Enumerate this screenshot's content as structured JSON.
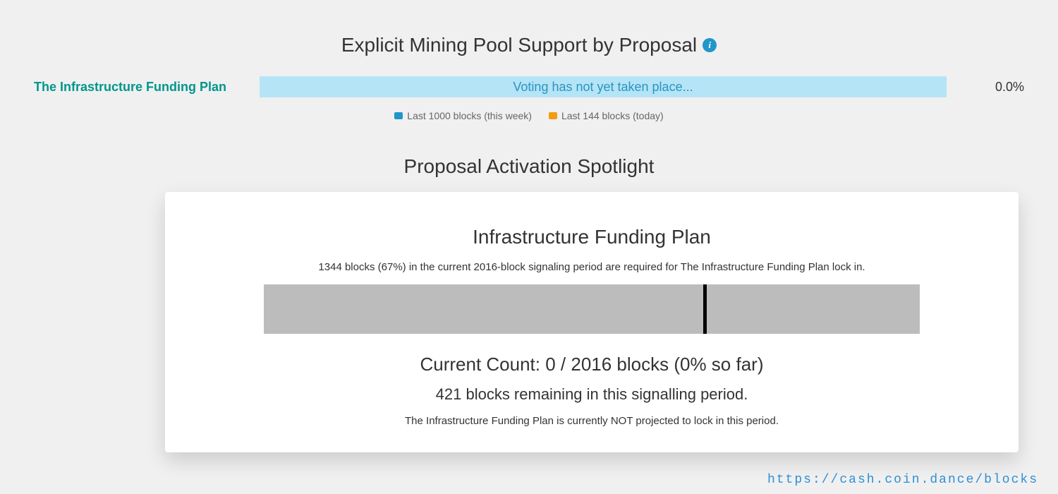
{
  "colors": {
    "background": "#f0f0f0",
    "card_bg": "#ffffff",
    "text_primary": "#333333",
    "accent_teal": "#00968d",
    "bar_blue": "#b5e4f7",
    "bar_blue_text": "#2b94bf",
    "info_bg": "#2196c9",
    "legend_blue": "#2196c9",
    "legend_orange": "#f39c12",
    "activation_bar": "#bcbcbc",
    "source_link": "#2f8fd4"
  },
  "support": {
    "title": "Explicit Mining Pool Support by Proposal",
    "info_glyph": "i",
    "proposal_name": "The Infrastructure Funding Plan",
    "voting_message": "Voting has not yet taken place...",
    "percent": "0.0%",
    "legend": {
      "week": {
        "label": "Last 1000 blocks (this week)",
        "color": "#2196c9"
      },
      "today": {
        "label": "Last 144 blocks (today)",
        "color": "#f39c12"
      }
    }
  },
  "spotlight": {
    "section_title": "Proposal Activation Spotlight",
    "card_title": "Infrastructure Funding Plan",
    "requirement_text": "1344 blocks (67%) in the current 2016-block signaling period are required for The Infrastructure Funding Plan lock in.",
    "threshold_percent": 67,
    "count_line": "Current Count: 0 / 2016 blocks (0% so far)",
    "remaining_line": "421 blocks remaining in this signalling period.",
    "projection_line": "The Infrastructure Funding Plan is currently NOT projected to lock in this period."
  },
  "source_url": "https://cash.coin.dance/blocks"
}
